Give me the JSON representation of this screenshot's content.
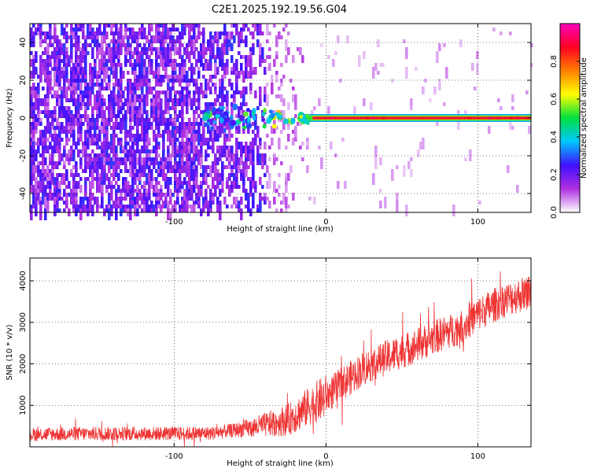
{
  "title": "C2E1.2025.192.19.56.G04",
  "chart_data": [
    {
      "type": "heatmap",
      "xlabel": "Height of straight line (km)",
      "ylabel": "Frequency (Hz)",
      "xlim": [
        -195,
        135
      ],
      "ylim": [
        -50,
        50
      ],
      "xticks": [
        -100,
        0,
        100
      ],
      "xticklabels": [
        "-100",
        "0",
        "100"
      ],
      "yticks": [
        -40,
        -20,
        0,
        20,
        40
      ],
      "yticklabels": [
        "-40",
        "-20",
        "0",
        "20",
        "40"
      ],
      "grid": true,
      "colorbar": {
        "label": "Normalized spectral amplitude",
        "range": [
          0,
          1
        ],
        "ticks": [
          0.0,
          0.2,
          0.4,
          0.6,
          0.8
        ],
        "ticklabels": [
          "0.0",
          "0.2",
          "0.4",
          "0.6",
          "0.8"
        ],
        "colors": [
          "#ffffff",
          "#b030e0",
          "#4010ff",
          "#00c8ff",
          "#00e040",
          "#ffff00",
          "#ff8000",
          "#ff0020",
          "#ff00c0"
        ]
      },
      "signal_line": {
        "x_start": -15,
        "x_end": 135,
        "frequency": 0,
        "amplitude": 0.9
      },
      "noise_region": {
        "x_start": -195,
        "x_end": -10,
        "frequency_range": [
          -50,
          50
        ]
      }
    },
    {
      "type": "line",
      "xlabel": "Height of straight line (km)",
      "ylabel": "SNR (10 * v/v)",
      "xlim": [
        -195,
        135
      ],
      "ylim": [
        0,
        4550
      ],
      "xticks": [
        -100,
        0,
        100
      ],
      "xticklabels": [
        "-100",
        "0",
        "100"
      ],
      "yticks": [
        1000,
        2000,
        3000,
        4000
      ],
      "yticklabels": [
        "1000",
        "2000",
        "3000",
        "4000"
      ],
      "grid": true,
      "color": "#ee3333",
      "trend": {
        "x": [
          -195,
          -150,
          -100,
          -75,
          -50,
          -25,
          -10,
          0,
          10,
          25,
          40,
          50,
          60,
          75,
          90,
          100,
          115,
          135
        ],
        "y": [
          300,
          320,
          320,
          330,
          450,
          650,
          1000,
          1200,
          1500,
          1900,
          2150,
          2300,
          2450,
          2700,
          2900,
          3200,
          3500,
          3750
        ]
      }
    }
  ]
}
